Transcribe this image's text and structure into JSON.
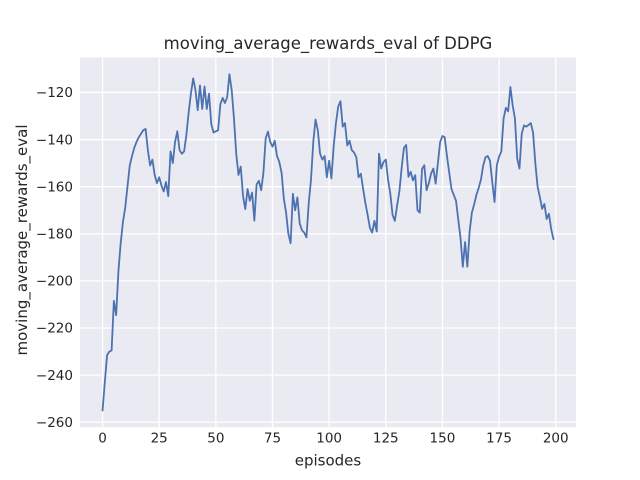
{
  "figure": {
    "title": "moving_average_rewards_eval of DDPG"
  },
  "chart_data": {
    "type": "line",
    "title": "moving_average_rewards_eval of DDPG",
    "xlabel": "episodes",
    "ylabel": "moving_average_rewards_eval",
    "x_tick_values": [
      0,
      25,
      50,
      75,
      100,
      125,
      150,
      175,
      200
    ],
    "x_tick_labels": [
      "0",
      "25",
      "50",
      "75",
      "100",
      "125",
      "150",
      "175",
      "200"
    ],
    "y_tick_values": [
      -260,
      -240,
      -220,
      -200,
      -180,
      -160,
      -140,
      -120
    ],
    "y_tick_labels": [
      "−260",
      "−240",
      "−220",
      "−200",
      "−180",
      "−160",
      "−140",
      "−120"
    ],
    "xlim": [
      -9.95,
      208.95
    ],
    "ylim": [
      -262.1,
      -105.2
    ],
    "grid": true,
    "legend_position": "none",
    "style": {
      "figure_bg": "#ffffff",
      "plot_bg": "#eaeaf2",
      "grid_color": "#ffffff",
      "line_color": "#4c72b0",
      "text_color": "#262626"
    },
    "series": [
      {
        "name": "moving_average_rewards_eval",
        "x_start": 0,
        "x_step": 1,
        "values": [
          -255,
          -243,
          -231.5,
          -230,
          -229.5,
          -208.5,
          -214.5,
          -196,
          -184,
          -175,
          -169,
          -160,
          -151,
          -147,
          -143.5,
          -141,
          -139,
          -137.5,
          -136,
          -135.5,
          -144.5,
          -151,
          -148.5,
          -155,
          -158.5,
          -156,
          -159.5,
          -162,
          -158,
          -164,
          -145,
          -150,
          -141,
          -136.5,
          -144.5,
          -146,
          -145,
          -138,
          -128.5,
          -120.5,
          -114,
          -119,
          -127.5,
          -117,
          -127,
          -117.5,
          -127,
          -120.5,
          -133.5,
          -137,
          -136.5,
          -136,
          -125,
          -122.3,
          -124.5,
          -122,
          -112.3,
          -119,
          -131,
          -146,
          -155,
          -151.5,
          -164,
          -169.5,
          -161,
          -166,
          -162.5,
          -174.4,
          -159,
          -157.5,
          -161.5,
          -154,
          -139.5,
          -136.6,
          -141,
          -143,
          -140.5,
          -147,
          -149.5,
          -154,
          -165,
          -171,
          -180,
          -184,
          -163,
          -170,
          -164.5,
          -175.5,
          -178.5,
          -179.5,
          -181.5,
          -167,
          -157,
          -141,
          -131.5,
          -136,
          -146,
          -148.5,
          -147,
          -156,
          -149,
          -156.5,
          -143,
          -133,
          -126,
          -123.7,
          -134.5,
          -133,
          -142.5,
          -140.5,
          -144.5,
          -145.5,
          -147.5,
          -156,
          -154.5,
          -161,
          -167,
          -172,
          -177.5,
          -179.5,
          -174.5,
          -179,
          -146,
          -152.3,
          -149.5,
          -148.5,
          -157,
          -163,
          -172,
          -174.5,
          -168,
          -162,
          -152,
          -143.5,
          -142.3,
          -155.8,
          -153.7,
          -157.3,
          -155.1,
          -170,
          -171,
          -152.5,
          -150.9,
          -161.5,
          -158.5,
          -154.4,
          -152.3,
          -158.7,
          -150,
          -141,
          -138.5,
          -139,
          -147,
          -154,
          -161,
          -163.5,
          -166,
          -174,
          -182,
          -194,
          -183.5,
          -194,
          -179,
          -171,
          -167.5,
          -163.5,
          -160.5,
          -157,
          -151,
          -147.5,
          -147,
          -149,
          -158,
          -166.5,
          -151,
          -147.3,
          -145,
          -131,
          -126.5,
          -128,
          -117.7,
          -125.5,
          -131,
          -148,
          -152.3,
          -137.5,
          -134,
          -134.5,
          -133.8,
          -133,
          -137,
          -150,
          -160,
          -164.4,
          -169.4,
          -167.3,
          -173.7,
          -171.5,
          -178,
          -182.3
        ]
      }
    ]
  }
}
